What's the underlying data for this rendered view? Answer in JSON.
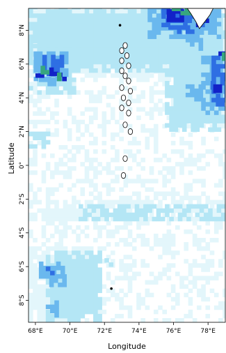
{
  "map": {
    "xlabel": "Longitude",
    "ylabel": "Latitude",
    "x_ticks": [
      "68°E",
      "70°E",
      "72°E",
      "74°E",
      "76°E",
      "78°E"
    ],
    "x_tick_values": [
      68,
      70,
      72,
      74,
      76,
      78
    ],
    "y_ticks": [
      "8°N",
      "6°N",
      "4°N",
      "2°N",
      "0°",
      "2°S",
      "4°S",
      "6°S",
      "8°S"
    ],
    "y_tick_values": [
      8,
      6,
      4,
      2,
      0,
      -2,
      -4,
      -6,
      -8
    ],
    "extent": {
      "lon_min": 67.6,
      "lon_max": 79.0,
      "lat_min": -9.3,
      "lat_max": 9.3
    },
    "grid_resolution_deg": 0.25,
    "colors": {
      "very_light": "#e3f6fb",
      "light": "#b4e6f5",
      "medium": "#6ab8ee",
      "blue": "#2e6fe3",
      "dark_blue": "#1222c8",
      "green": "#37a67f",
      "land_outline": "#000000"
    },
    "patches": [
      {
        "level": "very_light",
        "rects": [
          [
            67.6,
            79.0,
            -9.3,
            9.3
          ]
        ],
        "note": ""
      },
      {
        "level": "light",
        "rects": [
          [
            67.6,
            79.0,
            5.5,
            9.3
          ],
          [
            67.6,
            70.3,
            4.2,
            7.2
          ],
          [
            75.5,
            79.0,
            2.0,
            6.2
          ],
          [
            68.6,
            71.8,
            -9.3,
            -5.3
          ],
          [
            72.0,
            73.0,
            -6.0,
            -5.5
          ],
          [
            70.5,
            79.0,
            -3.3,
            -2.5
          ],
          [
            67.6,
            68.8,
            1.0,
            2.0
          ]
        ],
        "note": ""
      },
      {
        "level": "medium",
        "rects": [
          [
            74.5,
            78.7,
            7.5,
            9.3
          ],
          [
            76.7,
            77.5,
            6.8,
            7.8
          ],
          [
            67.9,
            69.8,
            5.0,
            6.7
          ],
          [
            68.2,
            69.2,
            4.7,
            5.2
          ],
          [
            77.6,
            79.0,
            3.0,
            6.5
          ],
          [
            76.7,
            77.7,
            3.8,
            4.8
          ],
          [
            68.2,
            69.5,
            -6.7,
            -5.7
          ],
          [
            68.8,
            69.7,
            -7.2,
            -6.6
          ],
          [
            68.6,
            69.2,
            -9.0,
            -8.0
          ]
        ],
        "note": ""
      },
      {
        "level": "blue",
        "rects": [
          [
            75.3,
            77.8,
            8.2,
            9.3
          ],
          [
            75.7,
            77.2,
            7.8,
            8.3
          ],
          [
            68.4,
            69.6,
            5.3,
            6.4
          ],
          [
            78.2,
            79.0,
            3.5,
            6.5
          ],
          [
            77.9,
            78.5,
            4.5,
            5.0
          ],
          [
            68.6,
            69.0,
            -6.5,
            -6.1
          ]
        ],
        "note": ""
      },
      {
        "level": "dark_blue",
        "rects": [
          [
            75.6,
            76.4,
            8.5,
            9.2
          ],
          [
            77.3,
            77.9,
            8.2,
            8.8
          ],
          [
            68.8,
            69.3,
            5.3,
            5.8
          ],
          [
            78.6,
            79.0,
            6.0,
            6.6
          ],
          [
            78.3,
            78.7,
            4.3,
            4.7
          ],
          [
            68.0,
            68.3,
            5.2,
            5.6
          ],
          [
            69.3,
            69.6,
            5.0,
            5.3
          ]
        ],
        "note": ""
      },
      {
        "level": "green",
        "rects": [
          [
            75.9,
            77.0,
            8.9,
            9.3
          ],
          [
            77.6,
            78.0,
            8.5,
            8.9
          ],
          [
            68.3,
            68.7,
            5.4,
            5.8
          ],
          [
            69.0,
            69.5,
            5.0,
            5.4
          ],
          [
            78.8,
            79.0,
            6.2,
            6.5
          ]
        ],
        "note": ""
      }
    ],
    "islands": [
      [
        73.2,
        7.1
      ],
      [
        73.0,
        6.8
      ],
      [
        73.3,
        6.5
      ],
      [
        73.0,
        6.2
      ],
      [
        73.4,
        5.9
      ],
      [
        73.0,
        5.6
      ],
      [
        73.2,
        5.3
      ],
      [
        73.4,
        5.0
      ],
      [
        73.0,
        4.6
      ],
      [
        73.5,
        4.4
      ],
      [
        73.1,
        4.0
      ],
      [
        73.4,
        3.7
      ],
      [
        73.0,
        3.4
      ],
      [
        73.4,
        3.1
      ],
      [
        73.2,
        2.4
      ],
      [
        73.5,
        2.0
      ],
      [
        73.2,
        0.4
      ],
      [
        73.1,
        -0.6
      ],
      [
        72.4,
        -7.3
      ],
      [
        72.9,
        8.3
      ]
    ],
    "coast_points": [
      [
        76.8,
        9.3
      ],
      [
        77.0,
        9.0
      ],
      [
        77.3,
        8.5
      ],
      [
        77.5,
        8.1
      ],
      [
        77.8,
        8.5
      ],
      [
        78.1,
        8.9
      ],
      [
        78.3,
        9.3
      ]
    ]
  }
}
